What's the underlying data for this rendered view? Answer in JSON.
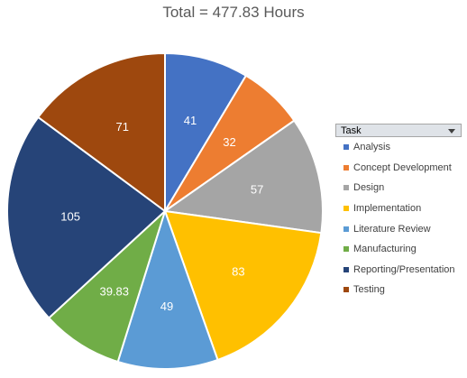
{
  "chart_data": {
    "type": "pie",
    "title": "Total = 477.83 Hours",
    "legend_title": "Task",
    "legend_placement": "right",
    "slices": [
      {
        "label": "Analysis",
        "value": 41,
        "value_label": "41",
        "color": "#4472c4"
      },
      {
        "label": "Concept Development",
        "value": 32,
        "value_label": "32",
        "color": "#ed7d31"
      },
      {
        "label": "Design",
        "value": 57,
        "value_label": "57",
        "color": "#a5a5a5"
      },
      {
        "label": "Implementation",
        "value": 83,
        "value_label": "83",
        "color": "#ffc000"
      },
      {
        "label": "Literature Review",
        "value": 49,
        "value_label": "49",
        "color": "#5b9bd5"
      },
      {
        "label": "Manufacturing",
        "value": 39.83,
        "value_label": "39.83",
        "color": "#70ad47"
      },
      {
        "label": "Reporting/Presentation",
        "value": 105,
        "value_label": "105",
        "color": "#264478"
      },
      {
        "label": "Testing",
        "value": 71,
        "value_label": "71",
        "color": "#9e480e"
      }
    ]
  }
}
